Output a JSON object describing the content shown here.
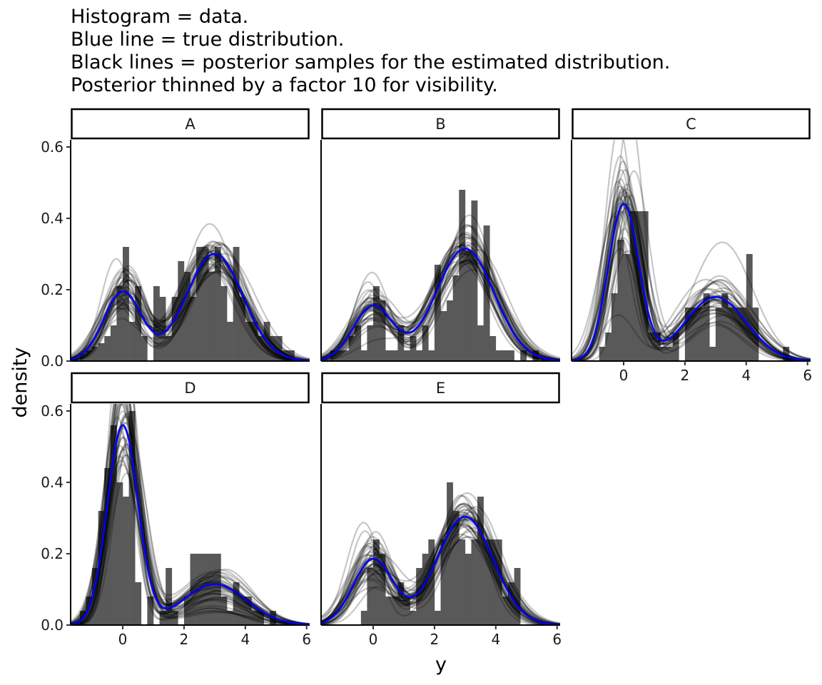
{
  "title_lines": [
    "Histogram = data.",
    "Blue line = true distribution.",
    "Black lines = posterior samples for the estimated distribution.",
    "Posterior thinned by a factor 10 for visibility."
  ],
  "colors": {
    "hist": "#595959",
    "true_line": "#0000ff",
    "posterior": "#000000",
    "strip_border": "#000000"
  },
  "chart_data": {
    "type": "histogram+density (faceted)",
    "xlabel": "y",
    "ylabel": "density",
    "xlim": [
      -1.7,
      6.1
    ],
    "ylim": [
      0,
      0.62
    ],
    "xticks": [
      0,
      2,
      4,
      6
    ],
    "yticks": [
      0.0,
      0.2,
      0.4,
      0.6
    ],
    "ytick_labels": [
      "0.0",
      "0.2",
      "0.4",
      "0.6"
    ],
    "bin_width": 0.2,
    "posterior_samples_shown": 40,
    "panels": [
      {
        "label": "A",
        "true_density": {
          "weights": [
            0.3,
            0.7
          ],
          "means": [
            0,
            3
          ],
          "sds": [
            0.62,
            0.93
          ]
        },
        "posterior_spread": 0.18,
        "histogram": {
          "x": [
            -1.4,
            -1.2,
            -1.0,
            -0.8,
            -0.6,
            -0.4,
            -0.2,
            0.0,
            0.2,
            0.4,
            0.6,
            0.8,
            1.0,
            1.2,
            1.4,
            1.6,
            1.8,
            2.0,
            2.2,
            2.4,
            2.6,
            2.8,
            3.0,
            3.2,
            3.4,
            3.6,
            3.8,
            4.0,
            4.2,
            4.4,
            4.6,
            4.8,
            5.0,
            5.2,
            5.4,
            5.6
          ],
          "y": [
            0.02,
            0.03,
            0.04,
            0.05,
            0.07,
            0.1,
            0.21,
            0.32,
            0.11,
            0.21,
            0.07,
            0.0,
            0.21,
            0.18,
            0.07,
            0.18,
            0.28,
            0.25,
            0.18,
            0.32,
            0.32,
            0.25,
            0.32,
            0.21,
            0.11,
            0.32,
            0.18,
            0.11,
            0.11,
            0.07,
            0.11,
            0.07,
            0.07,
            0.03,
            0.03,
            0.0
          ]
        }
      },
      {
        "label": "B",
        "true_density": {
          "weights": [
            0.25,
            0.75
          ],
          "means": [
            0,
            3
          ],
          "sds": [
            0.65,
            0.95
          ]
        },
        "posterior_spread": 0.18,
        "histogram": {
          "x": [
            -1.4,
            -1.2,
            -1.0,
            -0.8,
            -0.6,
            -0.4,
            -0.2,
            0.0,
            0.2,
            0.4,
            0.6,
            0.8,
            1.0,
            1.2,
            1.4,
            1.6,
            1.8,
            2.0,
            2.2,
            2.4,
            2.6,
            2.8,
            3.0,
            3.2,
            3.4,
            3.6,
            3.8,
            4.0,
            4.2,
            4.4,
            4.6,
            4.8,
            5.0,
            5.2,
            5.4
          ],
          "y": [
            0.03,
            0.03,
            0.03,
            0.07,
            0.1,
            0.03,
            0.1,
            0.21,
            0.17,
            0.03,
            0.03,
            0.1,
            0.03,
            0.07,
            0.03,
            0.1,
            0.03,
            0.27,
            0.14,
            0.17,
            0.24,
            0.48,
            0.31,
            0.45,
            0.1,
            0.38,
            0.07,
            0.03,
            0.03,
            0.03,
            0.0,
            0.03,
            0.0,
            0.03,
            0.0
          ]
        }
      },
      {
        "label": "C",
        "true_density": {
          "weights": [
            0.55,
            0.45
          ],
          "means": [
            0,
            3
          ],
          "sds": [
            0.5,
            1.0
          ]
        },
        "posterior_spread": 0.2,
        "histogram": {
          "x": [
            -1.4,
            -1.2,
            -1.0,
            -0.8,
            -0.6,
            -0.4,
            -0.2,
            0.0,
            0.2,
            0.4,
            0.6,
            0.8,
            1.0,
            1.2,
            1.4,
            1.6,
            1.8,
            2.0,
            2.2,
            2.4,
            2.6,
            2.8,
            3.0,
            3.2,
            3.4,
            3.6,
            3.8,
            4.0,
            4.2,
            4.4,
            4.6,
            4.8,
            5.0,
            5.2
          ],
          "y": [
            0.0,
            0.0,
            0.0,
            0.04,
            0.08,
            0.19,
            0.34,
            0.3,
            0.42,
            0.42,
            0.42,
            0.08,
            0.08,
            0.04,
            0.04,
            0.08,
            0.0,
            0.15,
            0.15,
            0.15,
            0.19,
            0.04,
            0.15,
            0.19,
            0.15,
            0.15,
            0.15,
            0.3,
            0.15,
            0.0,
            0.0,
            0.0,
            0.0,
            0.04
          ]
        }
      },
      {
        "label": "D",
        "true_density": {
          "weights": [
            0.7,
            0.3
          ],
          "means": [
            0,
            3
          ],
          "sds": [
            0.5,
            1.05
          ]
        },
        "posterior_spread": 0.15,
        "histogram": {
          "x": [
            -1.4,
            -1.2,
            -1.0,
            -0.8,
            -0.6,
            -0.4,
            -0.2,
            0.0,
            0.2,
            0.4,
            0.6,
            0.8,
            1.0,
            1.2,
            1.4,
            1.6,
            1.8,
            2.0,
            2.2,
            2.4,
            2.6,
            2.8,
            3.0,
            3.2,
            3.4,
            3.6,
            3.8,
            4.0,
            4.2,
            4.4,
            4.6,
            4.8,
            5.0,
            5.2
          ],
          "y": [
            0.04,
            0.08,
            0.16,
            0.32,
            0.44,
            0.56,
            0.4,
            0.36,
            0.6,
            0.12,
            0.0,
            0.08,
            0.0,
            0.04,
            0.16,
            0.04,
            0.0,
            0.08,
            0.2,
            0.2,
            0.2,
            0.2,
            0.2,
            0.08,
            0.04,
            0.12,
            0.08,
            0.08,
            0.04,
            0.04,
            0.0,
            0.04,
            0.0,
            0.0
          ]
        }
      },
      {
        "label": "E",
        "true_density": {
          "weights": [
            0.3,
            0.7
          ],
          "means": [
            0,
            3
          ],
          "sds": [
            0.65,
            0.92
          ]
        },
        "posterior_spread": 0.18,
        "histogram": {
          "x": [
            -1.4,
            -1.2,
            -1.0,
            -0.8,
            -0.6,
            -0.4,
            -0.2,
            0.0,
            0.2,
            0.4,
            0.6,
            0.8,
            1.0,
            1.2,
            1.4,
            1.6,
            1.8,
            2.0,
            2.2,
            2.4,
            2.6,
            2.8,
            3.0,
            3.2,
            3.4,
            3.6,
            3.8,
            4.0,
            4.2,
            4.4,
            4.6,
            4.8
          ],
          "y": [
            0.0,
            0.0,
            0.0,
            0.0,
            0.0,
            0.04,
            0.16,
            0.24,
            0.2,
            0.08,
            0.08,
            0.12,
            0.08,
            0.04,
            0.16,
            0.2,
            0.24,
            0.04,
            0.24,
            0.4,
            0.32,
            0.24,
            0.2,
            0.24,
            0.36,
            0.24,
            0.24,
            0.24,
            0.08,
            0.12,
            0.16,
            0.0
          ]
        }
      }
    ]
  }
}
